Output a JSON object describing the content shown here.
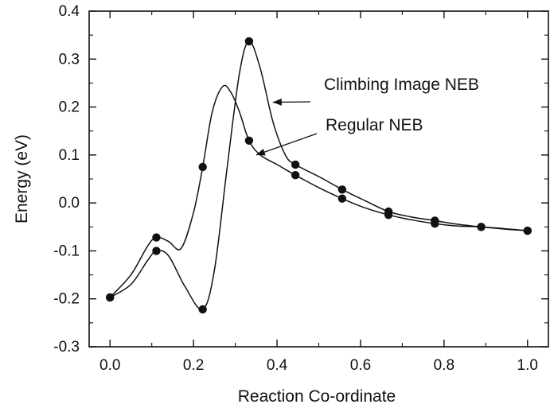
{
  "chart_data": {
    "type": "line",
    "title": "",
    "xlabel": "Reaction Co-ordinate",
    "ylabel": "Energy  (eV)",
    "xlim": [
      -0.05,
      1.05
    ],
    "ylim": [
      -0.3,
      0.4
    ],
    "xticks": [
      "0.0",
      "0.2",
      "0.4",
      "0.6",
      "0.8",
      "1.0"
    ],
    "yticks": [
      "0.4",
      "0.3",
      "0.2",
      "0.1",
      "0.0",
      "-0.1",
      "-0.2",
      "-0.3"
    ],
    "grid": false,
    "legend": "none",
    "series": [
      {
        "name": "Climbing Image NEB",
        "points": [
          [
            0.0,
            -0.197
          ],
          [
            0.111,
            -0.1
          ],
          [
            0.222,
            -0.222
          ],
          [
            0.333,
            0.337
          ],
          [
            0.444,
            0.08
          ],
          [
            0.556,
            0.028
          ],
          [
            0.667,
            -0.018
          ],
          [
            0.778,
            -0.037
          ],
          [
            0.889,
            -0.05
          ],
          [
            1.0,
            -0.058
          ]
        ],
        "curve": [
          [
            0.0,
            -0.197
          ],
          [
            0.05,
            -0.17
          ],
          [
            0.09,
            -0.12
          ],
          [
            0.111,
            -0.1
          ],
          [
            0.14,
            -0.11
          ],
          [
            0.18,
            -0.175
          ],
          [
            0.222,
            -0.222
          ],
          [
            0.25,
            -0.14
          ],
          [
            0.28,
            0.07
          ],
          [
            0.31,
            0.27
          ],
          [
            0.333,
            0.337
          ],
          [
            0.36,
            0.28
          ],
          [
            0.39,
            0.17
          ],
          [
            0.42,
            0.1
          ],
          [
            0.444,
            0.08
          ],
          [
            0.5,
            0.055
          ],
          [
            0.556,
            0.028
          ],
          [
            0.61,
            0.005
          ],
          [
            0.667,
            -0.018
          ],
          [
            0.72,
            -0.029
          ],
          [
            0.778,
            -0.037
          ],
          [
            0.83,
            -0.044
          ],
          [
            0.889,
            -0.05
          ],
          [
            0.95,
            -0.055
          ],
          [
            1.0,
            -0.058
          ]
        ]
      },
      {
        "name": "Regular NEB",
        "points": [
          [
            0.0,
            -0.197
          ],
          [
            0.111,
            -0.072
          ],
          [
            0.222,
            0.075
          ],
          [
            0.333,
            0.13
          ],
          [
            0.444,
            0.058
          ],
          [
            0.556,
            0.009
          ],
          [
            0.667,
            -0.025
          ],
          [
            0.778,
            -0.043
          ],
          [
            0.889,
            -0.05
          ],
          [
            1.0,
            -0.058
          ]
        ],
        "curve": [
          [
            0.0,
            -0.197
          ],
          [
            0.05,
            -0.15
          ],
          [
            0.09,
            -0.09
          ],
          [
            0.111,
            -0.072
          ],
          [
            0.14,
            -0.08
          ],
          [
            0.17,
            -0.095
          ],
          [
            0.2,
            -0.02
          ],
          [
            0.222,
            0.075
          ],
          [
            0.245,
            0.19
          ],
          [
            0.27,
            0.243
          ],
          [
            0.29,
            0.23
          ],
          [
            0.31,
            0.19
          ],
          [
            0.333,
            0.13
          ],
          [
            0.36,
            0.1
          ],
          [
            0.4,
            0.08
          ],
          [
            0.444,
            0.058
          ],
          [
            0.5,
            0.032
          ],
          [
            0.556,
            0.009
          ],
          [
            0.61,
            -0.01
          ],
          [
            0.667,
            -0.025
          ],
          [
            0.72,
            -0.035
          ],
          [
            0.778,
            -0.043
          ],
          [
            0.83,
            -0.048
          ],
          [
            0.889,
            -0.05
          ],
          [
            0.95,
            -0.054
          ],
          [
            1.0,
            -0.058
          ]
        ]
      }
    ],
    "annotations": [
      {
        "text": "Climbing Image NEB",
        "points_to": [
          0.39,
          0.21
        ]
      },
      {
        "text": "Regular NEB",
        "points_to": [
          0.35,
          0.1
        ]
      }
    ]
  }
}
